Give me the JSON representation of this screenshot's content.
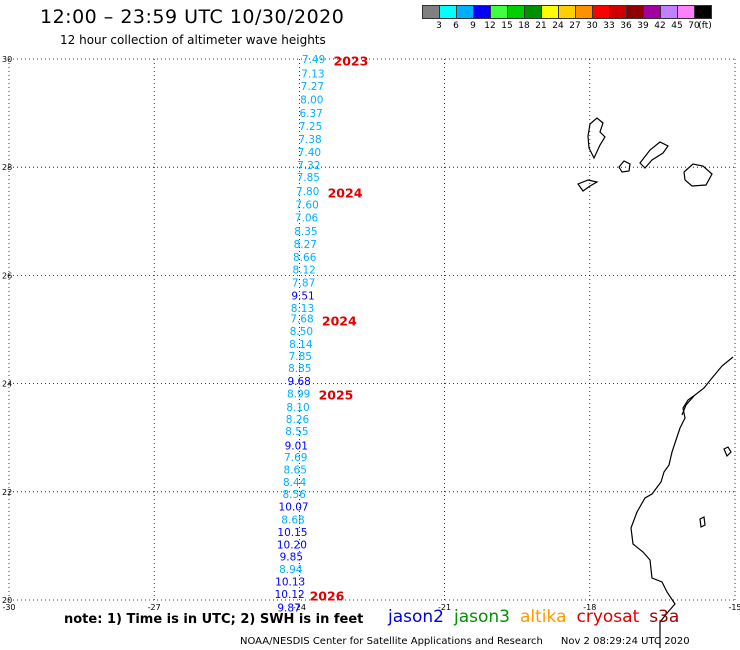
{
  "header": {
    "title": "12:00 – 23:59 UTC 10/30/2020",
    "subtitle": "12 hour collection of altimeter wave heights"
  },
  "colorbar": {
    "colors": [
      "#808080",
      "#00ffff",
      "#00b0ff",
      "#0000ff",
      "#40ff40",
      "#00d000",
      "#009000",
      "#ffff00",
      "#ffd000",
      "#ff9000",
      "#ff0000",
      "#d00000",
      "#900000",
      "#a000a0",
      "#c080ff",
      "#ff80ff",
      "#000000"
    ],
    "labels": [
      "3",
      "6",
      "9",
      "12",
      "15",
      "18",
      "21",
      "24",
      "27",
      "30",
      "33",
      "36",
      "39",
      "42",
      "45",
      "70",
      "(ft)"
    ]
  },
  "map": {
    "lon_range": [
      -30,
      -15
    ],
    "lat_range": [
      20,
      30
    ],
    "x_ticks": [
      "-30",
      "-27",
      "-24",
      "-21",
      "-18",
      "-15"
    ],
    "y_ticks": [
      "30",
      "28",
      "26",
      "24",
      "22",
      "20"
    ],
    "grid": "dotted",
    "track_colors": {
      "cyan": "#00b0ff",
      "blue": "#0000ff"
    },
    "label_color": "#e00000",
    "track": [
      {
        "v": "7.49",
        "lat": 30.0,
        "c": "cyan"
      },
      {
        "v": "7.13",
        "lat": 29.73,
        "c": "cyan"
      },
      {
        "v": "7.27",
        "lat": 29.5,
        "c": "cyan"
      },
      {
        "v": "8.00",
        "lat": 29.25,
        "c": "cyan"
      },
      {
        "v": "6.37",
        "lat": 29.0,
        "c": "cyan"
      },
      {
        "v": "7.25",
        "lat": 28.76,
        "c": "cyan"
      },
      {
        "v": "7.38",
        "lat": 28.52,
        "c": "cyan"
      },
      {
        "v": "7.40",
        "lat": 28.28,
        "c": "cyan"
      },
      {
        "v": "7.32",
        "lat": 28.04,
        "c": "cyan"
      },
      {
        "v": "7.85",
        "lat": 27.82,
        "c": "cyan"
      },
      {
        "v": "7.80",
        "lat": 27.56,
        "c": "cyan"
      },
      {
        "v": "7.60",
        "lat": 27.31,
        "c": "cyan"
      },
      {
        "v": "7.06",
        "lat": 27.07,
        "c": "cyan"
      },
      {
        "v": "8.35",
        "lat": 26.82,
        "c": "cyan"
      },
      {
        "v": "8.27",
        "lat": 26.58,
        "c": "cyan"
      },
      {
        "v": "8.66",
        "lat": 26.34,
        "c": "cyan"
      },
      {
        "v": "8.12",
        "lat": 26.11,
        "c": "cyan"
      },
      {
        "v": "7.87",
        "lat": 25.87,
        "c": "cyan"
      },
      {
        "v": "9.51",
        "lat": 25.63,
        "c": "blue"
      },
      {
        "v": "8.13",
        "lat": 25.4,
        "c": "cyan"
      },
      {
        "v": "7.68",
        "lat": 25.2,
        "c": "cyan"
      },
      {
        "v": "8.50",
        "lat": 24.97,
        "c": "cyan"
      },
      {
        "v": "8.14",
        "lat": 24.73,
        "c": "cyan"
      },
      {
        "v": "7.85",
        "lat": 24.51,
        "c": "cyan"
      },
      {
        "v": "8.85",
        "lat": 24.29,
        "c": "cyan"
      },
      {
        "v": "9.68",
        "lat": 24.05,
        "c": "blue"
      },
      {
        "v": "8.99",
        "lat": 23.82,
        "c": "cyan"
      },
      {
        "v": "8.10",
        "lat": 23.57,
        "c": "cyan"
      },
      {
        "v": "8.26",
        "lat": 23.35,
        "c": "cyan"
      },
      {
        "v": "8.55",
        "lat": 23.12,
        "c": "cyan"
      },
      {
        "v": "9.01",
        "lat": 22.86,
        "c": "blue"
      },
      {
        "v": "7.69",
        "lat": 22.64,
        "c": "cyan"
      },
      {
        "v": "8.65",
        "lat": 22.41,
        "c": "cyan"
      },
      {
        "v": "8.44",
        "lat": 22.18,
        "c": "cyan"
      },
      {
        "v": "8.56",
        "lat": 21.96,
        "c": "cyan"
      },
      {
        "v": "10.07",
        "lat": 21.73,
        "c": "blue"
      },
      {
        "v": "8.68",
        "lat": 21.49,
        "c": "cyan"
      },
      {
        "v": "10.15",
        "lat": 21.26,
        "c": "blue"
      },
      {
        "v": "10.20",
        "lat": 21.03,
        "c": "blue"
      },
      {
        "v": "9.85",
        "lat": 20.8,
        "c": "blue"
      },
      {
        "v": "8.94",
        "lat": 20.57,
        "c": "cyan"
      },
      {
        "v": "10.13",
        "lat": 20.34,
        "c": "blue"
      },
      {
        "v": "10.12",
        "lat": 20.11,
        "c": "blue"
      },
      {
        "v": "9.87",
        "lat": 19.86,
        "c": "blue"
      }
    ],
    "time_labels": [
      {
        "text": "2023",
        "lat": 29.97
      },
      {
        "text": "2024",
        "lat": 27.53
      },
      {
        "text": "2024",
        "lat": 25.17
      },
      {
        "text": "2025",
        "lat": 23.8
      },
      {
        "text": "2026",
        "lat": 20.08
      }
    ]
  },
  "footer": {
    "note": "note: 1) Time is in UTC; 2) SWH is in feet",
    "satellites": [
      {
        "name": "jason2",
        "color": "#0000dd"
      },
      {
        "name": "jason3",
        "color": "#009000"
      },
      {
        "name": "altika",
        "color": "#ff9900"
      },
      {
        "name": "cryosat",
        "color": "#dd0000"
      },
      {
        "name": "s3a",
        "color": "#990000"
      }
    ],
    "credit": "NOAA/NESDIS Center for Satellite Applications and Research",
    "timestamp": "Nov  2 08:29:24 UTC 2020"
  }
}
